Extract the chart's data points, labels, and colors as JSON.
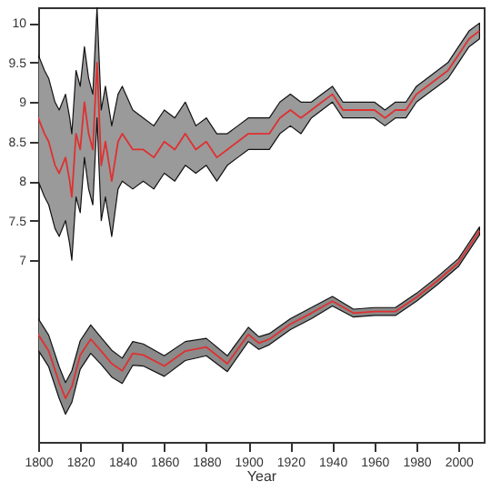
{
  "chart_data": {
    "type": "line",
    "xlabel": "Year",
    "xlim": [
      1800,
      2012
    ],
    "xticks": [
      1800,
      1820,
      1840,
      1860,
      1880,
      1900,
      1920,
      1940,
      1960,
      1980,
      2000
    ],
    "ylim": [
      4.7,
      10.2
    ],
    "yticks": [
      7,
      7.5,
      8,
      8.5,
      9,
      9.5,
      10
    ],
    "grid": false,
    "marker": "none",
    "line_style": "solid",
    "series": [
      {
        "color": "#e03030",
        "x": [
          1800,
          1803,
          1805,
          1808,
          1810,
          1813,
          1815,
          1816,
          1818,
          1820,
          1822,
          1824,
          1826,
          1828,
          1830,
          1832,
          1835,
          1838,
          1840,
          1845,
          1850,
          1855,
          1860,
          1865,
          1870,
          1875,
          1880,
          1885,
          1890,
          1895,
          1900,
          1905,
          1910,
          1915,
          1920,
          1925,
          1930,
          1935,
          1940,
          1945,
          1950,
          1955,
          1960,
          1965,
          1970,
          1975,
          1980,
          1985,
          1990,
          1995,
          2000,
          2005,
          2010
        ],
        "values": [
          8.8,
          8.6,
          8.5,
          8.2,
          8.1,
          8.3,
          8.0,
          7.8,
          8.6,
          8.4,
          9.0,
          8.6,
          8.4,
          9.5,
          8.2,
          8.5,
          8.0,
          8.5,
          8.6,
          8.4,
          8.4,
          8.3,
          8.5,
          8.4,
          8.6,
          8.4,
          8.5,
          8.3,
          8.4,
          8.5,
          8.6,
          8.6,
          8.6,
          8.8,
          8.9,
          8.8,
          8.9,
          9.0,
          9.1,
          8.9,
          8.9,
          8.9,
          8.9,
          8.8,
          8.9,
          8.9,
          9.1,
          9.2,
          9.3,
          9.4,
          9.6,
          9.8,
          9.9
        ],
        "lower": [
          8.0,
          7.8,
          7.7,
          7.4,
          7.3,
          7.5,
          7.2,
          7.0,
          7.8,
          7.6,
          8.3,
          7.9,
          7.7,
          8.8,
          7.5,
          7.8,
          7.3,
          7.9,
          8.0,
          7.9,
          8.0,
          7.9,
          8.1,
          8.0,
          8.2,
          8.1,
          8.2,
          8.0,
          8.2,
          8.3,
          8.4,
          8.4,
          8.4,
          8.6,
          8.7,
          8.6,
          8.8,
          8.9,
          9.0,
          8.8,
          8.8,
          8.8,
          8.8,
          8.7,
          8.8,
          8.8,
          9.0,
          9.1,
          9.2,
          9.3,
          9.5,
          9.7,
          9.8
        ],
        "upper": [
          9.6,
          9.4,
          9.3,
          9.0,
          8.9,
          9.1,
          8.8,
          8.6,
          9.4,
          9.2,
          9.7,
          9.3,
          9.1,
          10.2,
          8.9,
          9.2,
          8.7,
          9.1,
          9.2,
          8.9,
          8.8,
          8.7,
          8.9,
          8.8,
          9.0,
          8.7,
          8.8,
          8.6,
          8.6,
          8.7,
          8.8,
          8.8,
          8.8,
          9.0,
          9.1,
          9.0,
          9.0,
          9.1,
          9.2,
          9.0,
          9.0,
          9.0,
          9.0,
          8.9,
          9.0,
          9.0,
          9.2,
          9.3,
          9.4,
          9.5,
          9.7,
          9.9,
          10.0
        ]
      },
      {
        "color": "#e03030",
        "x": [
          1800,
          1805,
          1810,
          1813,
          1816,
          1820,
          1825,
          1830,
          1835,
          1840,
          1845,
          1850,
          1860,
          1870,
          1880,
          1890,
          1900,
          1905,
          1910,
          1920,
          1930,
          1940,
          1950,
          1960,
          1970,
          1980,
          1990,
          2000,
          2010
        ],
        "values": [
          6.06,
          5.85,
          5.45,
          5.25,
          5.4,
          5.8,
          6.0,
          5.85,
          5.69,
          5.6,
          5.82,
          5.8,
          5.66,
          5.85,
          5.9,
          5.69,
          6.06,
          5.95,
          6.0,
          6.19,
          6.33,
          6.48,
          6.33,
          6.35,
          6.35,
          6.53,
          6.74,
          6.97,
          7.37
        ],
        "lower": [
          5.86,
          5.65,
          5.25,
          5.05,
          5.2,
          5.62,
          5.82,
          5.68,
          5.52,
          5.44,
          5.67,
          5.66,
          5.53,
          5.73,
          5.79,
          5.59,
          5.97,
          5.87,
          5.93,
          6.12,
          6.26,
          6.42,
          6.28,
          6.3,
          6.3,
          6.48,
          6.69,
          6.92,
          7.32
        ],
        "upper": [
          6.26,
          6.05,
          5.65,
          5.45,
          5.6,
          5.98,
          6.18,
          6.02,
          5.86,
          5.76,
          5.97,
          5.94,
          5.79,
          5.97,
          6.01,
          5.79,
          6.15,
          6.03,
          6.07,
          6.26,
          6.4,
          6.54,
          6.38,
          6.4,
          6.4,
          6.58,
          6.79,
          7.02,
          7.42
        ]
      }
    ]
  }
}
